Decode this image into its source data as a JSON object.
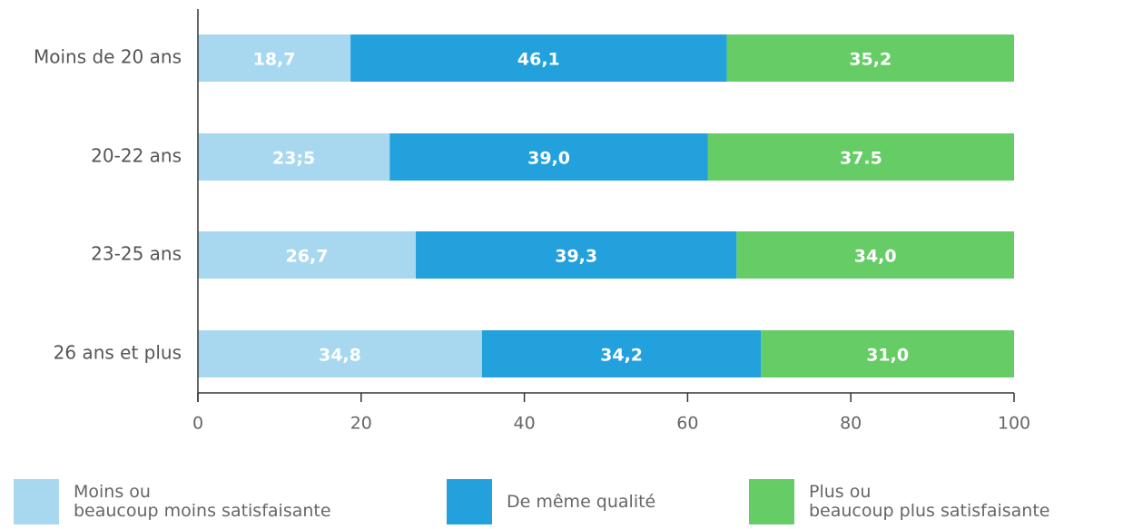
{
  "chart_data": {
    "type": "stacked_barh",
    "categories": [
      "Moins de 20 ans",
      "20-22 ans",
      "23-25 ans",
      "26 ans et plus"
    ],
    "series": [
      {
        "name": "Moins ou\nbeaucoup moins satisfaisante",
        "color": "#a8d8f0",
        "values": [
          18.7,
          23.5,
          26.7,
          34.8
        ],
        "value_labels": [
          "18,7",
          "23;5",
          "26,7",
          "34,8"
        ]
      },
      {
        "name": "De même qualité",
        "color": "#22a1dc",
        "values": [
          46.1,
          39.0,
          39.3,
          34.2
        ],
        "value_labels": [
          "46,1",
          "39,0",
          "39,3",
          "34,2"
        ]
      },
      {
        "name": "Plus ou\nbeaucoup plus satisfaisante",
        "color": "#66cc66",
        "values": [
          35.2,
          37.5,
          34.0,
          31.0
        ],
        "value_labels": [
          "35,2",
          "37.5",
          "34,0",
          "31,0"
        ]
      }
    ],
    "xlim": [
      0,
      100
    ],
    "xticks": [
      0,
      20,
      40,
      60,
      80,
      100
    ],
    "legend": "bottom"
  }
}
